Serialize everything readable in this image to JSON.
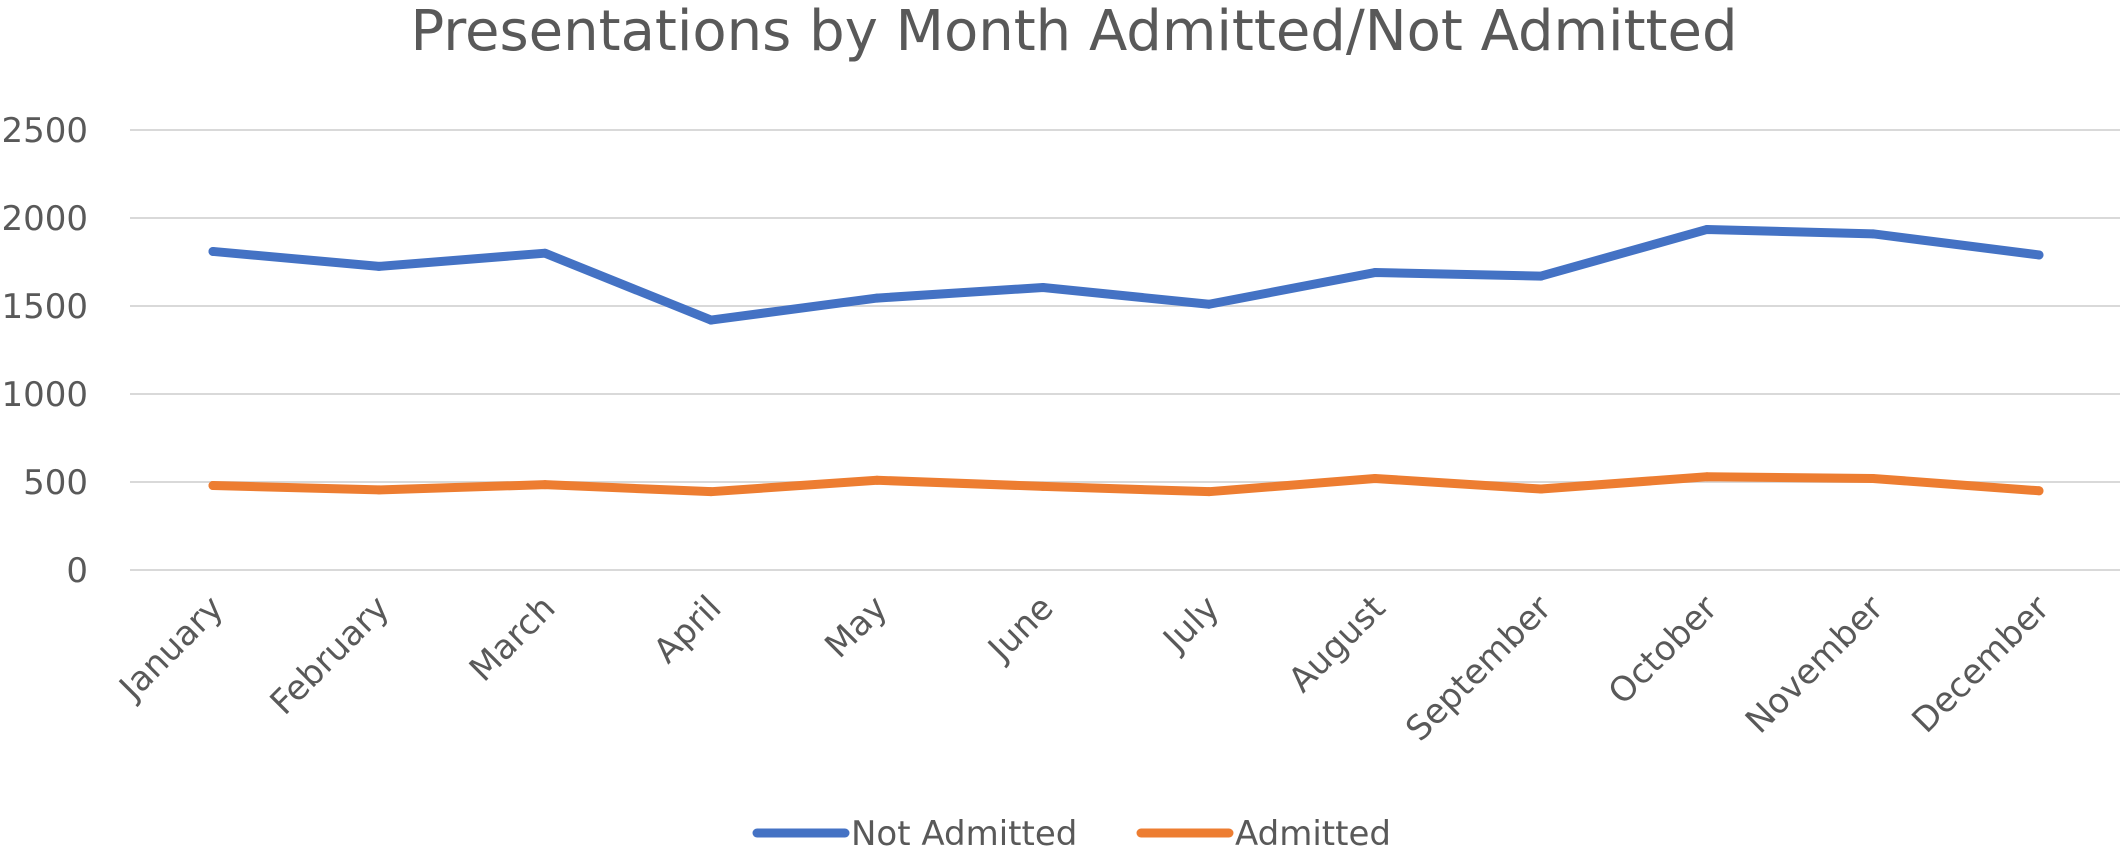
{
  "chart_data": {
    "type": "line",
    "title": "Presentations by Month Admitted/Not Admitted",
    "categories": [
      "January",
      "February",
      "March",
      "April",
      "May",
      "June",
      "July",
      "August",
      "September",
      "October",
      "November",
      "December"
    ],
    "ylim": [
      0,
      2500
    ],
    "yticks": [
      0,
      500,
      1000,
      1500,
      2000,
      2500
    ],
    "grid": true,
    "legend_position": "bottom",
    "series": [
      {
        "name": "Not Admitted",
        "color": "#4472c4",
        "values": [
          1810,
          1725,
          1800,
          1420,
          1545,
          1605,
          1510,
          1690,
          1670,
          1935,
          1910,
          1790
        ]
      },
      {
        "name": "Admitted",
        "color": "#ed7d31",
        "values": [
          480,
          455,
          485,
          445,
          510,
          475,
          445,
          520,
          460,
          530,
          520,
          450
        ]
      }
    ]
  }
}
